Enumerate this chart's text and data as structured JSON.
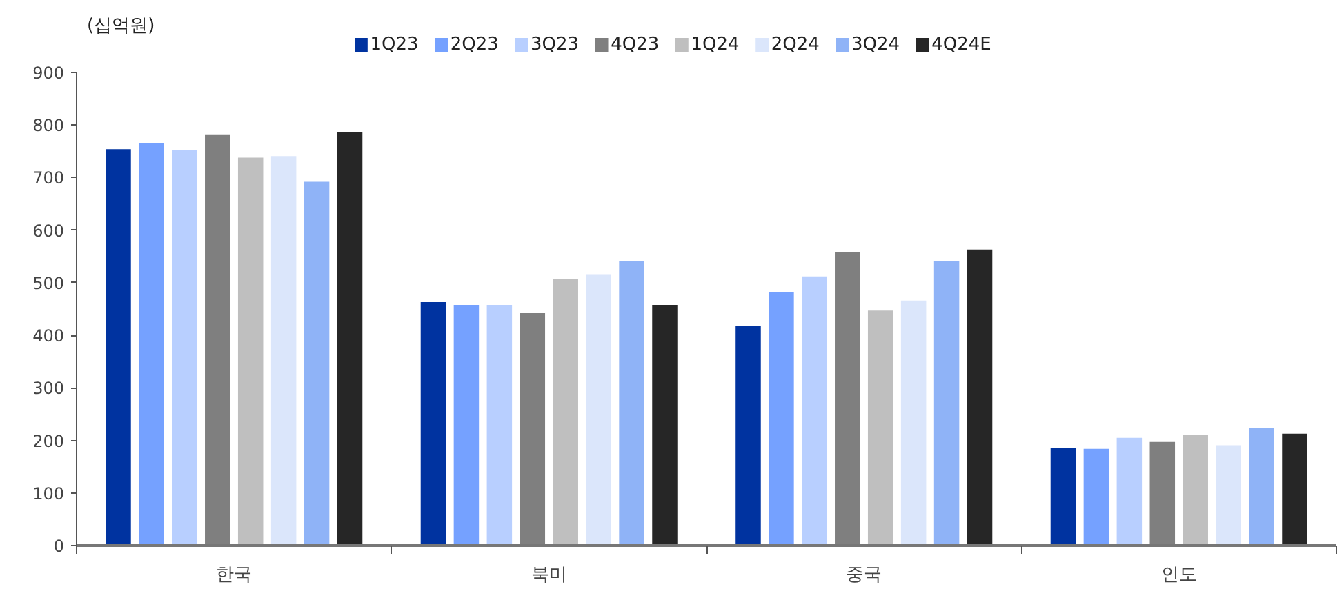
{
  "chart_data": {
    "type": "bar",
    "ylabel": "(십억원)",
    "categories": [
      "한국",
      "북미",
      "중국",
      "인도"
    ],
    "series": [
      {
        "name": "1Q23",
        "color": "#0033a0",
        "values": [
          754,
          463,
          418,
          186
        ]
      },
      {
        "name": "2Q23",
        "color": "#75a1ff",
        "values": [
          765,
          458,
          482,
          184
        ]
      },
      {
        "name": "3Q23",
        "color": "#b8cfff",
        "values": [
          752,
          458,
          512,
          205
        ]
      },
      {
        "name": "4Q23",
        "color": "#7f7f7f",
        "values": [
          781,
          442,
          558,
          197
        ]
      },
      {
        "name": "1Q24",
        "color": "#bfbfbf",
        "values": [
          738,
          507,
          447,
          210
        ]
      },
      {
        "name": "2Q24",
        "color": "#dbe6fb",
        "values": [
          741,
          515,
          466,
          191
        ]
      },
      {
        "name": "3Q24",
        "color": "#8fb3f7",
        "values": [
          692,
          542,
          542,
          224
        ]
      },
      {
        "name": "4Q24E",
        "color": "#262626",
        "values": [
          787,
          458,
          563,
          213
        ]
      }
    ],
    "ylim": [
      0,
      900
    ],
    "yticks": [
      0,
      100,
      200,
      300,
      400,
      500,
      600,
      700,
      800,
      900
    ],
    "grid": false,
    "legend": "top"
  }
}
